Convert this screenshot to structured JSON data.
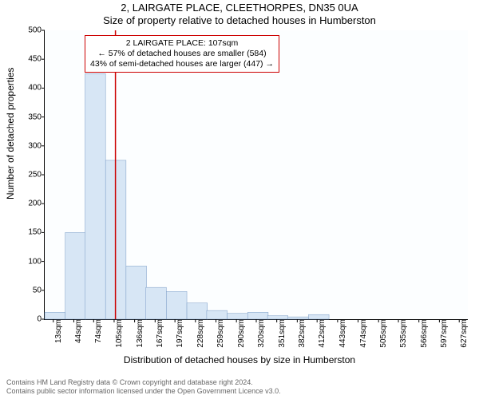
{
  "titles": {
    "line1": "2, LAIRGATE PLACE, CLEETHORPES, DN35 0UA",
    "line2": "Size of property relative to detached houses in Humberston"
  },
  "axes": {
    "ylabel": "Number of detached properties",
    "xlabel": "Distribution of detached houses by size in Humberston",
    "ylim": [
      0,
      500
    ],
    "xlim_sqm": [
      0,
      640
    ],
    "yticks": [
      0,
      50,
      100,
      150,
      200,
      250,
      300,
      350,
      400,
      450,
      500
    ],
    "xtick_sqm": [
      13,
      44,
      74,
      105,
      136,
      167,
      197,
      228,
      259,
      290,
      320,
      351,
      382,
      412,
      443,
      474,
      505,
      535,
      566,
      597,
      627
    ],
    "xtick_suffix": "sqm",
    "background_color": "#fcfeff",
    "bar_fill": "#d7e6f5",
    "bar_stroke": "#7a9cc6",
    "grid_color": "#b0b0b0",
    "marker_color": "#cc0000",
    "tick_fontsize": 10,
    "label_fontsize": 12,
    "title_fontsize": 13
  },
  "bars": {
    "bin_starts_sqm": [
      0,
      31,
      61,
      92,
      123,
      153,
      184,
      215,
      245,
      276,
      307,
      337,
      368,
      399
    ],
    "bin_width_sqm": 31,
    "heights": [
      12,
      150,
      425,
      275,
      92,
      55,
      48,
      28,
      15,
      10,
      12,
      6,
      4,
      8
    ]
  },
  "marker_sqm": 107,
  "callout": {
    "line1": "2 LAIRGATE PLACE: 107sqm",
    "line2": "← 57% of detached houses are smaller (584)",
    "line3": "43% of semi-detached houses are larger (447) →",
    "border_color": "#cc0000"
  },
  "footer": {
    "line1": "Contains HM Land Registry data © Crown copyright and database right 2024.",
    "line2": "Contains public sector information licensed under the Open Government Licence v3.0."
  }
}
